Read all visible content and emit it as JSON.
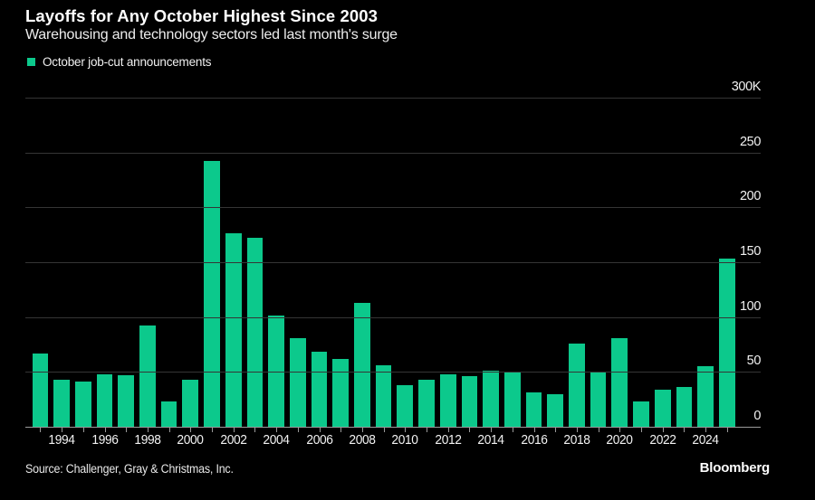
{
  "header": {
    "title": "Layoffs for Any October Highest Since 2003",
    "subtitle": "Warehousing and technology sectors led last month's surge"
  },
  "legend": {
    "label": "October job-cut announcements"
  },
  "footer": {
    "source": "Source: Challenger, Gray & Christmas, Inc.",
    "brand": "Bloomberg"
  },
  "colors": {
    "background": "#000000",
    "bar": "#0cc98c",
    "gridline": "#353535",
    "axis": "#9a9a9a",
    "tick_label": "#f2f2f2"
  },
  "chart_data": {
    "type": "bar",
    "title": "Layoffs for Any October Highest Since 2003",
    "subtitle": "Warehousing and technology sectors led last month's surge",
    "series_name": "October job-cut announcements",
    "units": "thousands of announced job cuts",
    "x": [
      1993,
      1994,
      1995,
      1996,
      1997,
      1998,
      1999,
      2000,
      2001,
      2002,
      2003,
      2004,
      2005,
      2006,
      2007,
      2008,
      2009,
      2010,
      2011,
      2012,
      2013,
      2014,
      2015,
      2016,
      2017,
      2018,
      2019,
      2020,
      2021,
      2022,
      2023,
      2024,
      2025
    ],
    "values": [
      67,
      43,
      41,
      48,
      47,
      92,
      23,
      43,
      242,
      176,
      172,
      101,
      81,
      68,
      62,
      113,
      56,
      38,
      43,
      48,
      46,
      51,
      50,
      31,
      30,
      76,
      50,
      81,
      23,
      34,
      36,
      55,
      153
    ],
    "ylim": [
      0,
      300
    ],
    "yticks": [
      0,
      50,
      100,
      150,
      200,
      250,
      300
    ],
    "ytick_labels": [
      "0",
      "50",
      "100",
      "150",
      "200",
      "250",
      "300K"
    ],
    "xtick_label_years": [
      1994,
      1996,
      1998,
      2000,
      2002,
      2004,
      2006,
      2008,
      2010,
      2012,
      2014,
      2016,
      2018,
      2020,
      2022,
      2024
    ],
    "grid": "horizontal",
    "legend_position": "top-left",
    "bar_color": "#0cc98c"
  }
}
